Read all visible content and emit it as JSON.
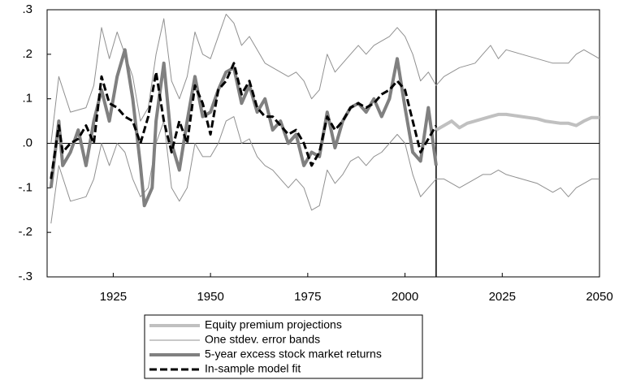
{
  "chart_data": {
    "type": "line",
    "xlim": [
      1908,
      2050
    ],
    "xticks": [
      1925,
      1950,
      1975,
      2000,
      2025,
      2050
    ],
    "ylim": [
      -0.3,
      0.3
    ],
    "yticks": [
      {
        "value": 0.3,
        "label": ".3"
      },
      {
        "value": 0.2,
        "label": ".2"
      },
      {
        "value": 0.1,
        "label": ".1"
      },
      {
        "value": 0,
        "label": ".0"
      },
      {
        "value": -0.1,
        "label": "-.1"
      },
      {
        "value": -0.2,
        "label": "-.2"
      },
      {
        "value": -0.3,
        "label": "-.3"
      }
    ],
    "zero_line": 0,
    "forecast_start": 2008,
    "series": [
      {
        "name": "Equity premium projections",
        "color": "#c0c0c0",
        "width": 4,
        "x": [
          2008,
          2010,
          2012,
          2014,
          2016,
          2018,
          2020,
          2022,
          2024,
          2026,
          2030,
          2034,
          2036,
          2040,
          2042,
          2044,
          2046,
          2048,
          2050
        ],
        "values": [
          0.03,
          0.04,
          0.05,
          0.035,
          0.045,
          0.05,
          0.055,
          0.06,
          0.065,
          0.065,
          0.06,
          0.055,
          0.05,
          0.045,
          0.045,
          0.04,
          0.05,
          0.058,
          0.058
        ]
      },
      {
        "name": "One stdev. error bands",
        "color": "#909090",
        "width": 1,
        "x": [
          1909,
          1911,
          1914,
          1918,
          1920,
          1922,
          1924,
          1926,
          1928,
          1930,
          1932,
          1934,
          1936,
          1938,
          1940,
          1942,
          1944,
          1946,
          1948,
          1950,
          1952,
          1954,
          1956,
          1958,
          1960,
          1962,
          1964,
          1966,
          1968,
          1970,
          1972,
          1974,
          1976,
          1978,
          1980,
          1982,
          1984,
          1986,
          1988,
          1990,
          1992,
          1994,
          1996,
          1998,
          2000,
          2002,
          2004,
          2006,
          2008,
          2010,
          2014,
          2018,
          2020,
          2022,
          2024,
          2026,
          2030,
          2034,
          2038,
          2040,
          2042,
          2044,
          2046,
          2048,
          2050
        ],
        "values": [
          0.0,
          0.15,
          0.07,
          0.08,
          0.13,
          0.26,
          0.19,
          0.25,
          0.2,
          0.15,
          0.05,
          0.08,
          0.2,
          0.28,
          0.14,
          0.1,
          0.15,
          0.25,
          0.2,
          0.19,
          0.24,
          0.29,
          0.27,
          0.22,
          0.24,
          0.21,
          0.18,
          0.17,
          0.16,
          0.15,
          0.16,
          0.14,
          0.1,
          0.12,
          0.2,
          0.16,
          0.18,
          0.2,
          0.22,
          0.2,
          0.22,
          0.23,
          0.24,
          0.26,
          0.24,
          0.2,
          0.14,
          0.16,
          0.13,
          0.15,
          0.17,
          0.18,
          0.2,
          0.22,
          0.19,
          0.21,
          0.2,
          0.19,
          0.18,
          0.18,
          0.18,
          0.2,
          0.21,
          0.2,
          0.19
        ],
        "lower": [
          -0.18,
          -0.05,
          -0.13,
          -0.12,
          -0.08,
          0.0,
          -0.05,
          0.0,
          -0.02,
          -0.08,
          -0.12,
          -0.1,
          0.0,
          0.05,
          -0.1,
          -0.13,
          -0.1,
          0.0,
          -0.03,
          -0.03,
          0.0,
          0.05,
          0.06,
          0.0,
          0.01,
          -0.03,
          -0.05,
          -0.06,
          -0.08,
          -0.1,
          -0.08,
          -0.1,
          -0.15,
          -0.14,
          -0.06,
          -0.09,
          -0.07,
          -0.04,
          -0.03,
          -0.05,
          -0.03,
          -0.02,
          0.0,
          0.02,
          0.0,
          -0.07,
          -0.12,
          -0.1,
          -0.08,
          -0.08,
          -0.1,
          -0.08,
          -0.07,
          -0.07,
          -0.06,
          -0.07,
          -0.08,
          -0.09,
          -0.11,
          -0.1,
          -0.12,
          -0.1,
          -0.09,
          -0.08,
          -0.08
        ]
      },
      {
        "name": "5-year excess stock market returns",
        "color": "#808080",
        "width": 4,
        "x": [
          1909,
          1911,
          1912,
          1914,
          1916,
          1918,
          1920,
          1922,
          1924,
          1926,
          1928,
          1930,
          1932,
          1933,
          1935,
          1936,
          1938,
          1940,
          1942,
          1944,
          1946,
          1948,
          1950,
          1952,
          1954,
          1956,
          1958,
          1960,
          1962,
          1964,
          1966,
          1968,
          1970,
          1972,
          1974,
          1976,
          1978,
          1980,
          1982,
          1984,
          1986,
          1988,
          1990,
          1992,
          1994,
          1996,
          1998,
          2000,
          2002,
          2004,
          2006,
          2008
        ],
        "values": [
          -0.1,
          0.05,
          -0.05,
          -0.02,
          0.03,
          -0.05,
          0.05,
          0.12,
          0.05,
          0.15,
          0.21,
          0.1,
          -0.05,
          -0.14,
          -0.1,
          0.05,
          0.18,
          0.0,
          -0.06,
          0.05,
          0.15,
          0.06,
          0.07,
          0.12,
          0.16,
          0.17,
          0.09,
          0.13,
          0.07,
          0.1,
          0.03,
          0.05,
          0.0,
          0.02,
          -0.05,
          -0.02,
          -0.03,
          0.07,
          -0.01,
          0.05,
          0.08,
          0.09,
          0.07,
          0.1,
          0.06,
          0.1,
          0.19,
          0.08,
          -0.02,
          -0.04,
          0.08,
          -0.05
        ]
      },
      {
        "name": "In-sample model fit",
        "color": "#000000",
        "width": 3,
        "dashed": true,
        "x": [
          1909,
          1911,
          1912,
          1914,
          1916,
          1918,
          1920,
          1922,
          1924,
          1926,
          1928,
          1930,
          1932,
          1934,
          1936,
          1938,
          1940,
          1942,
          1944,
          1946,
          1948,
          1950,
          1952,
          1954,
          1956,
          1958,
          1960,
          1962,
          1964,
          1966,
          1968,
          1970,
          1972,
          1974,
          1976,
          1978,
          1980,
          1982,
          1984,
          1986,
          1988,
          1990,
          1992,
          1994,
          1996,
          1998,
          2000,
          2002,
          2004,
          2006,
          2008
        ],
        "values": [
          -0.08,
          0.04,
          -0.02,
          0.0,
          0.01,
          0.04,
          0.0,
          0.15,
          0.09,
          0.08,
          0.06,
          0.05,
          0.0,
          0.06,
          0.16,
          0.05,
          -0.02,
          0.05,
          0.0,
          0.13,
          0.09,
          0.02,
          0.12,
          0.14,
          0.18,
          0.11,
          0.14,
          0.08,
          0.06,
          0.06,
          0.04,
          0.02,
          0.03,
          0.0,
          -0.05,
          -0.02,
          0.06,
          0.03,
          0.05,
          0.08,
          0.09,
          0.08,
          0.09,
          0.11,
          0.12,
          0.14,
          0.12,
          0.05,
          -0.02,
          0.01,
          0.04
        ]
      }
    ]
  }
}
